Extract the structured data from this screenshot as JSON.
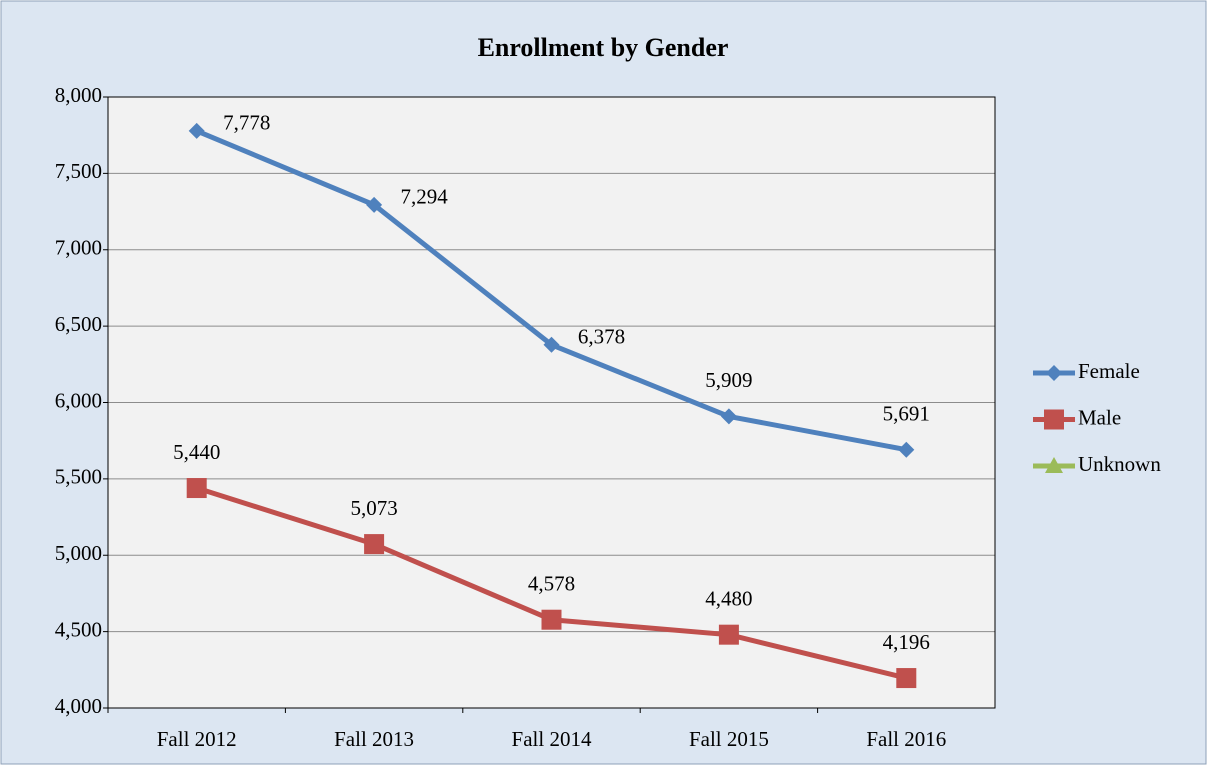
{
  "chart_data": {
    "type": "line",
    "title": "Enrollment by Gender",
    "categories": [
      "Fall 2012",
      "Fall 2013",
      "Fall 2014",
      "Fall 2015",
      "Fall 2016"
    ],
    "series": [
      {
        "name": "Female",
        "color": "#4f81bd",
        "marker": "diamond",
        "values": [
          7778,
          7294,
          6378,
          5909,
          5691
        ],
        "value_labels": [
          "7,778",
          "7,294",
          "6,378",
          "5,909",
          "5,691"
        ]
      },
      {
        "name": "Male",
        "color": "#c0504d",
        "marker": "square",
        "values": [
          5440,
          5073,
          4578,
          4480,
          4196
        ],
        "value_labels": [
          "5,440",
          "5,073",
          "4,578",
          "4,480",
          "4,196"
        ]
      },
      {
        "name": "Unknown",
        "color": "#9bbb59",
        "marker": "triangle",
        "values": [
          null,
          null,
          null,
          null,
          null
        ]
      }
    ],
    "ylim": [
      4000,
      8000
    ],
    "yticks": [
      {
        "value": 4000,
        "label": "4,000"
      },
      {
        "value": 4500,
        "label": "4,500"
      },
      {
        "value": 5000,
        "label": "5,000"
      },
      {
        "value": 5500,
        "label": "5,500"
      },
      {
        "value": 6000,
        "label": "6,000"
      },
      {
        "value": 6500,
        "label": "6,500"
      },
      {
        "value": 7000,
        "label": "7,000"
      },
      {
        "value": 7500,
        "label": "7,500"
      },
      {
        "value": 8000,
        "label": "8,000"
      }
    ],
    "grid": true,
    "legend": "right"
  }
}
